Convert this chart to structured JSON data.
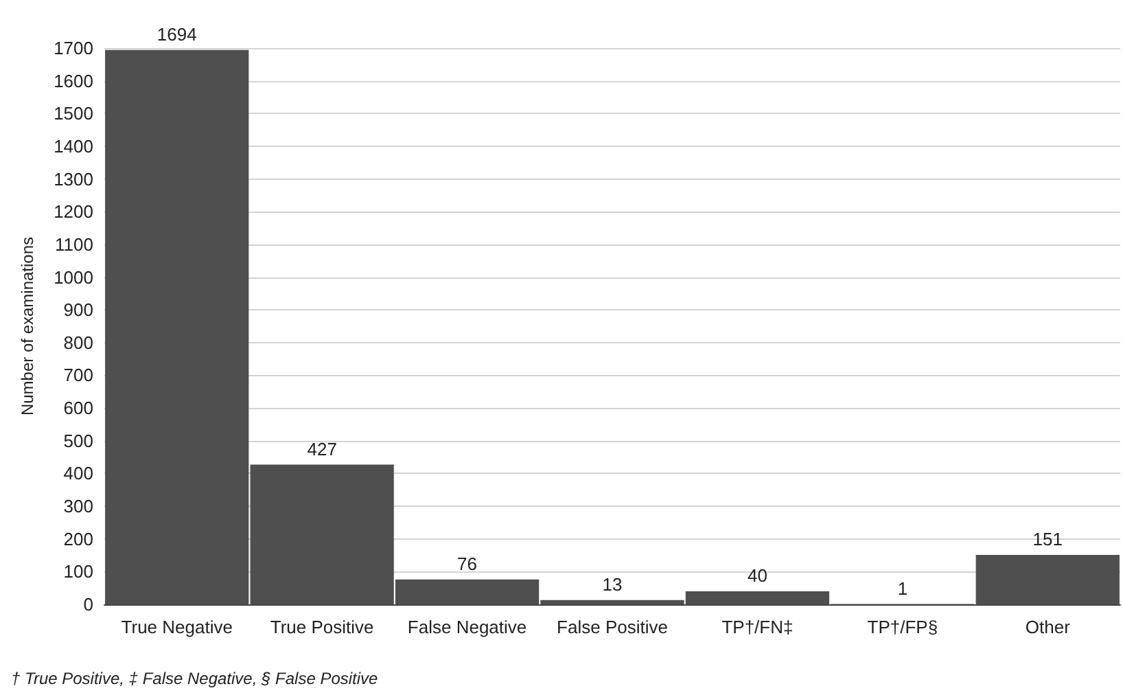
{
  "chart_data": {
    "type": "bar",
    "ylabel": "Number of examinations",
    "categories": [
      "True Negative",
      "True Positive",
      "False Negative",
      "False Positive",
      "TP†/FN‡",
      "TP†/FP§",
      "Other"
    ],
    "values": [
      1694,
      427,
      76,
      13,
      40,
      1,
      151
    ],
    "color": "#4f4f4f",
    "data_labels": true,
    "ylim": [
      0,
      1700
    ],
    "yticks": [
      0,
      100,
      200,
      300,
      400,
      500,
      600,
      700,
      800,
      900,
      1000,
      1100,
      1200,
      1300,
      1400,
      1500,
      1600,
      1700
    ],
    "grid": "y",
    "annotations": [
      "† True Positive, ‡ False Negative, § False Positive"
    ]
  }
}
